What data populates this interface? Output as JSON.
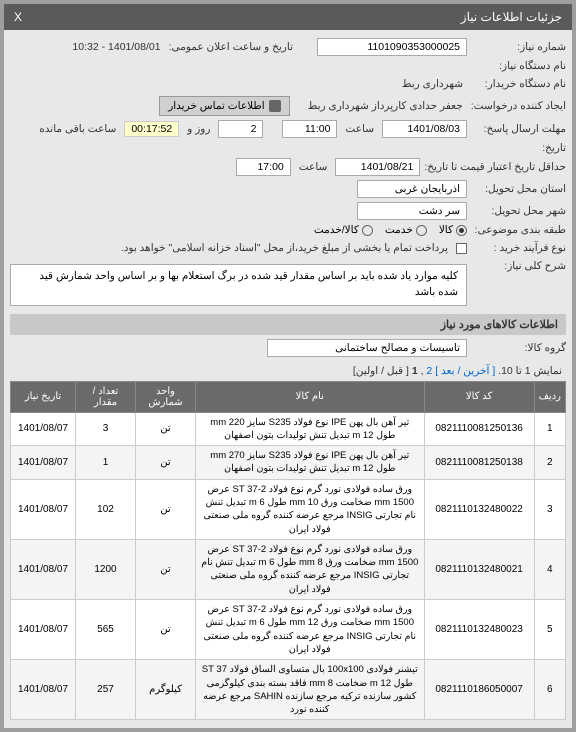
{
  "window": {
    "title": "جزئیات اطلاعات نیاز",
    "close": "X"
  },
  "fields": {
    "need_no_label": "شماره نیاز:",
    "need_no": "1101090353000025",
    "announce_label": "تاریخ و ساعت اعلان عمومی:",
    "announce_value": "1401/08/01 - 10:32",
    "device_label": "نام دستگاه نیاز:",
    "buyer_label": "نام دستگاه خریدار:",
    "buyer_value": "شهرداری ربط",
    "creator_label": "ایجاد کننده درخواست:",
    "creator_value": "جعفر حدادی کارپرداز شهرداری ربط",
    "contact_btn": "اطلاعات تماس خریدار",
    "deadline_label": "مهلت ارسال پاسخ:",
    "deadline_date": "1401/08/03",
    "time_label": "ساعت",
    "deadline_time": "11:00",
    "days_label": "روز و",
    "days": "2",
    "countdown": "00:17:52",
    "remain_label": "ساعت باقی مانده",
    "date_blank_label": "تاریخ:",
    "validity_label": "حداقل تاریخ اعتبار قیمت تا تاریخ:",
    "validity_date": "1401/08/21",
    "validity_time": "17:00",
    "province_label": "استان محل تحویل:",
    "province": "اذربایجان غربی",
    "city_label": "شهر محل تحویل:",
    "city": "سر دشت",
    "category_label": "طبقه بندی موضوعی:",
    "cat_goods": "کالا",
    "cat_service": "خدمت",
    "cat_goods_service": "کالا/خدمت",
    "process_label": "نوع فرآیند خرید :",
    "process_text": "پرداخت تمام یا بخشی از مبلغ خرید،از محل \"اسناد خزانه اسلامی\" خواهد بود.",
    "desc_label": "شرح کلی نیاز:",
    "desc_text": "کلیه موارد یاد شده باید بر اساس مقدار قید شده در برگ استعلام بها  و بر اساس واحد شمارش قید شده باشد"
  },
  "items_section": "اطلاعات کالاهای مورد نیاز",
  "group_label": "گروه کالا:",
  "group_value": "تاسیسات و مصالح ساختمانی",
  "pager": {
    "text_pre": "نمایش 1 تا 10.",
    "last": "[ آخرین",
    "next": "/ بعد ]",
    "p2": "2",
    "sep": ",",
    "p1": "1",
    "prev_first": "[ قبل / اولین]"
  },
  "table": {
    "headers": [
      "ردیف",
      "کد کالا",
      "نام کالا",
      "واحد شمارش",
      "تعداد / مقدار",
      "تاریخ نیاز"
    ],
    "rows": [
      {
        "n": "1",
        "code": "0821110081250136",
        "name": "تیر آهن بال پهن IPE نوع فولاد S235 سایز mm 220 طول m 12 تبدیل تنش تولیدات بتون اصفهان",
        "unit": "تن",
        "qty": "3",
        "date": "1401/08/07"
      },
      {
        "n": "2",
        "code": "0821110081250138",
        "name": "تیر آهن بال پهن IPE نوع فولاد S235 سایز mm 270 طول m 12 تبدیل تنش تولیدات بتون اصفهان",
        "unit": "تن",
        "qty": "1",
        "date": "1401/08/07"
      },
      {
        "n": "3",
        "code": "0821110132480022",
        "name": "ورق ساده فولادی نورد گرم نوع فولاد ST 37-2 عرض mm 1500 ضخامت ورق mm 10 طول m 6 تبدیل تنش نام تجارتی INSIG مرجع عرضه کننده گروه ملی صنعتی فولاد ایران",
        "unit": "تن",
        "qty": "102",
        "date": "1401/08/07"
      },
      {
        "n": "4",
        "code": "0821110132480021",
        "name": "ورق ساده فولادی نورد گرم نوع فولاد ST 37-2 عرض mm 1500 ضخامت ورق mm 8 طول m 6 تبدیل تنش نام تجارتی INSIG مرجع عرضه کننده گروه ملی صنعتی فولاد ایران",
        "unit": "تن",
        "qty": "1200",
        "date": "1401/08/07"
      },
      {
        "n": "5",
        "code": "0821110132480023",
        "name": "ورق ساده فولادی نورد گرم نوع فولاد ST 37-2 عرض mm 1500 ضخامت ورق mm 12 طول m 6 تبدیل تنش نام تجارتی INSIG مرجع عرضه کننده گروه ملی صنعتی فولاد ایران",
        "unit": "تن",
        "qty": "565",
        "date": "1401/08/07"
      },
      {
        "n": "6",
        "code": "0821110186050007",
        "name": "تیشنر فولادی 100x100 بال متساوی الساق فولاد ST 37 طول m 12 ضخامت mm 8 فاقد بسته بندی کیلوگرمی کشور سازنده ترکیه مرجع سازنده SAHIN مرجع عرضه کننده نورد",
        "unit": "کیلوگرم",
        "qty": "257",
        "date": "1401/08/07"
      }
    ]
  }
}
